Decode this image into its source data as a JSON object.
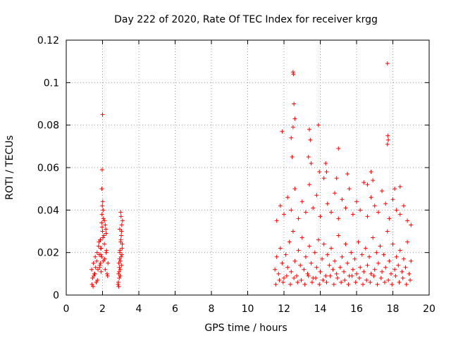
{
  "chart_data": {
    "type": "scatter",
    "title": "Day 222 of 2020, Rate Of TEC Index for receiver krgg",
    "xlabel": "GPS time / hours",
    "ylabel": "ROTI / TECUs",
    "xlim": [
      0,
      20
    ],
    "ylim": [
      0,
      0.12
    ],
    "xticks": [
      "0",
      "2",
      "4",
      "6",
      "8",
      "10",
      "12",
      "14",
      "16",
      "18",
      "20"
    ],
    "yticks": [
      "0",
      "0.02",
      "0.04",
      "0.06",
      "0.08",
      "0.1",
      "0.12"
    ],
    "grid": true,
    "marker": "plus",
    "color": "#ff0000",
    "series": [
      {
        "x": [
          1.4,
          1.45,
          1.5,
          1.55,
          1.6,
          1.65,
          1.7,
          1.75,
          1.8,
          1.85,
          1.9,
          1.95,
          2.0,
          2.05,
          2.1,
          2.15,
          2.2,
          2.25,
          2.3,
          1.42,
          1.52,
          1.62,
          1.72,
          1.82,
          1.92,
          2.02,
          2.12,
          2.22,
          1.48,
          1.58,
          1.68,
          1.78,
          1.88,
          1.98,
          2.08,
          2.18,
          2.28,
          1.95,
          1.97,
          1.99,
          2.01,
          2.03,
          2.05,
          1.93,
          1.91,
          1.89,
          1.87,
          1.85,
          2.15,
          2.2,
          2.1,
          1.96,
          1.98,
          2.0
        ],
        "y": [
          0.012,
          0.008,
          0.015,
          0.01,
          0.018,
          0.006,
          0.02,
          0.012,
          0.025,
          0.014,
          0.022,
          0.018,
          0.03,
          0.016,
          0.024,
          0.012,
          0.02,
          0.01,
          0.015,
          0.005,
          0.009,
          0.013,
          0.007,
          0.019,
          0.011,
          0.027,
          0.017,
          0.021,
          0.004,
          0.01,
          0.016,
          0.023,
          0.026,
          0.032,
          0.028,
          0.031,
          0.009,
          0.034,
          0.038,
          0.042,
          0.044,
          0.04,
          0.036,
          0.022,
          0.019,
          0.015,
          0.026,
          0.013,
          0.033,
          0.029,
          0.035,
          0.05,
          0.059,
          0.085
        ]
      },
      {
        "x": [
          2.85,
          2.88,
          2.9,
          2.92,
          2.95,
          2.98,
          3.0,
          3.02,
          3.05,
          3.08,
          3.1,
          2.87,
          2.91,
          2.94,
          2.97,
          3.01,
          3.04,
          3.07,
          2.89,
          2.93,
          2.96,
          2.99,
          3.03,
          3.06,
          3.09,
          3.0,
          3.02,
          2.95
        ],
        "y": [
          0.005,
          0.01,
          0.015,
          0.008,
          0.02,
          0.012,
          0.025,
          0.018,
          0.03,
          0.022,
          0.035,
          0.006,
          0.011,
          0.017,
          0.009,
          0.026,
          0.014,
          0.019,
          0.004,
          0.013,
          0.021,
          0.016,
          0.028,
          0.033,
          0.024,
          0.039,
          0.037,
          0.031
        ]
      },
      {
        "x": [
          11.5,
          11.6,
          11.7,
          11.8,
          11.9,
          12.0,
          12.1,
          12.2,
          12.3,
          12.4,
          12.5,
          12.6,
          12.7,
          12.8,
          12.9,
          13.0,
          13.1,
          13.2,
          13.3,
          13.4,
          13.5,
          13.6,
          13.7,
          13.8,
          13.9,
          14.0,
          14.1,
          14.2,
          14.3,
          14.4,
          14.5,
          14.6,
          14.7,
          14.8,
          14.9,
          15.0,
          15.1,
          15.2,
          15.3,
          15.4,
          15.5,
          15.6,
          15.7,
          15.8,
          15.9,
          16.0,
          16.1,
          16.2,
          16.3,
          16.4,
          16.5,
          16.6,
          16.7,
          16.8,
          16.9,
          17.0,
          17.1,
          17.2,
          17.3,
          17.4,
          17.5,
          17.6,
          17.7,
          17.8,
          17.9,
          18.0,
          18.1,
          18.2,
          18.3,
          18.4,
          18.5,
          18.6,
          18.7,
          18.8,
          18.9,
          19.0
        ],
        "y": [
          0.012,
          0.018,
          0.01,
          0.022,
          0.015,
          0.008,
          0.019,
          0.013,
          0.025,
          0.011,
          0.03,
          0.016,
          0.009,
          0.021,
          0.014,
          0.027,
          0.012,
          0.018,
          0.01,
          0.023,
          0.015,
          0.008,
          0.02,
          0.013,
          0.026,
          0.011,
          0.017,
          0.024,
          0.009,
          0.019,
          0.014,
          0.022,
          0.012,
          0.016,
          0.01,
          0.028,
          0.013,
          0.018,
          0.011,
          0.024,
          0.015,
          0.009,
          0.02,
          0.012,
          0.017,
          0.01,
          0.025,
          0.013,
          0.019,
          0.011,
          0.022,
          0.014,
          0.018,
          0.01,
          0.027,
          0.012,
          0.02,
          0.015,
          0.023,
          0.011,
          0.019,
          0.013,
          0.03,
          0.016,
          0.01,
          0.024,
          0.012,
          0.018,
          0.014,
          0.021,
          0.011,
          0.017,
          0.013,
          0.025,
          0.01,
          0.016
        ]
      },
      {
        "x": [
          11.6,
          11.8,
          12.0,
          12.2,
          12.4,
          12.6,
          12.8,
          13.0,
          13.2,
          13.4,
          13.6,
          13.8,
          14.0,
          14.2,
          14.4,
          14.6,
          14.8,
          15.0,
          15.2,
          15.4,
          15.6,
          15.8,
          16.0,
          16.2,
          16.4,
          16.6,
          16.8,
          17.0,
          17.2,
          17.4,
          17.6,
          17.8,
          18.0,
          18.2,
          18.4,
          18.6,
          18.8,
          19.0
        ],
        "y": [
          0.035,
          0.042,
          0.038,
          0.046,
          0.04,
          0.05,
          0.036,
          0.044,
          0.039,
          0.052,
          0.041,
          0.047,
          0.037,
          0.055,
          0.043,
          0.039,
          0.048,
          0.036,
          0.045,
          0.041,
          0.05,
          0.038,
          0.044,
          0.04,
          0.053,
          0.037,
          0.046,
          0.042,
          0.039,
          0.049,
          0.043,
          0.036,
          0.045,
          0.04,
          0.038,
          0.042,
          0.035,
          0.033
        ]
      },
      {
        "x": [
          11.9,
          12.5,
          12.52,
          12.55,
          12.6,
          12.5,
          12.4,
          13.4,
          13.45,
          13.35,
          13.9,
          13.95,
          14.3,
          14.35,
          15.0,
          14.9,
          16.6,
          16.8,
          17.7,
          17.72,
          17.75,
          17.7,
          18.1,
          12.45,
          13.5,
          15.5,
          16.9,
          18.4
        ],
        "y": [
          0.077,
          0.105,
          0.104,
          0.09,
          0.083,
          0.079,
          0.074,
          0.078,
          0.073,
          0.065,
          0.08,
          0.058,
          0.062,
          0.058,
          0.069,
          0.055,
          0.052,
          0.058,
          0.109,
          0.075,
          0.073,
          0.071,
          0.05,
          0.065,
          0.062,
          0.057,
          0.054,
          0.051
        ]
      },
      {
        "x": [
          11.55,
          11.75,
          11.95,
          12.15,
          12.35,
          12.55,
          12.75,
          12.95,
          13.15,
          13.35,
          13.55,
          13.75,
          13.95,
          14.15,
          14.35,
          14.55,
          14.75,
          14.95,
          15.15,
          15.35,
          15.55,
          15.75,
          15.95,
          16.15,
          16.35,
          16.55,
          16.75,
          16.95,
          17.15,
          17.35,
          17.55,
          17.75,
          17.95,
          18.15,
          18.35,
          18.55,
          18.75,
          18.95
        ],
        "y": [
          0.005,
          0.007,
          0.006,
          0.009,
          0.005,
          0.008,
          0.006,
          0.007,
          0.005,
          0.009,
          0.006,
          0.008,
          0.005,
          0.007,
          0.006,
          0.009,
          0.005,
          0.008,
          0.006,
          0.007,
          0.005,
          0.009,
          0.006,
          0.008,
          0.005,
          0.007,
          0.006,
          0.009,
          0.005,
          0.008,
          0.006,
          0.007,
          0.005,
          0.009,
          0.006,
          0.008,
          0.005,
          0.007
        ]
      }
    ]
  }
}
